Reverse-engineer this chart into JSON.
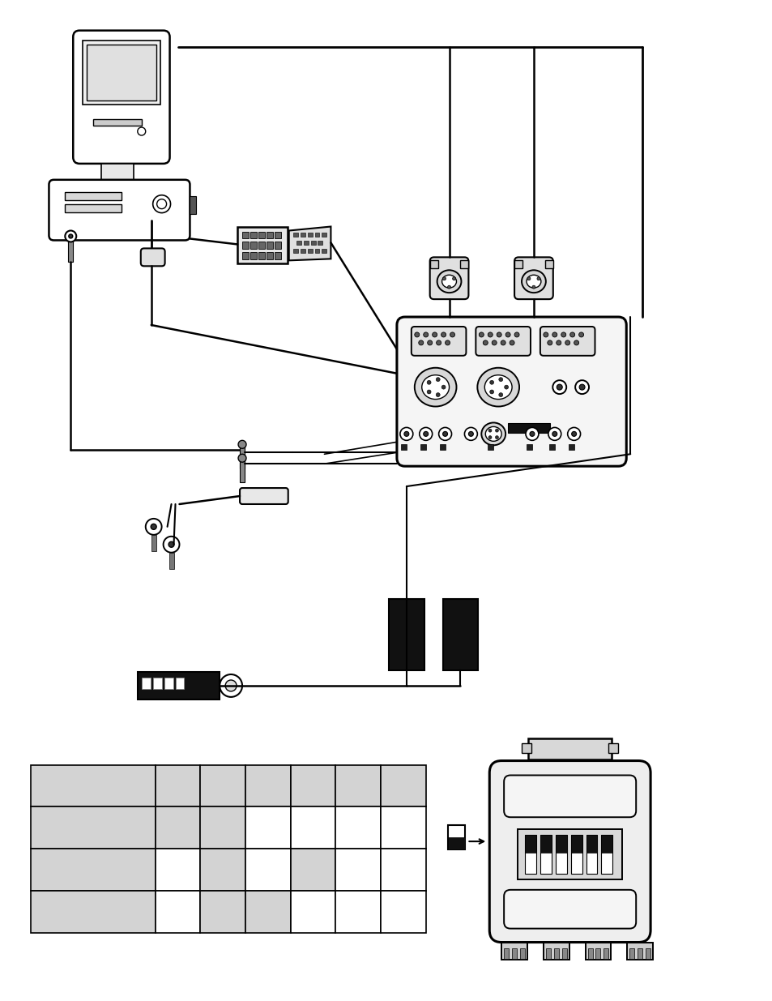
{
  "bg_color": "#ffffff",
  "line_color": "#000000",
  "gray_color": "#d3d3d3",
  "fig_width": 9.54,
  "fig_height": 12.35
}
